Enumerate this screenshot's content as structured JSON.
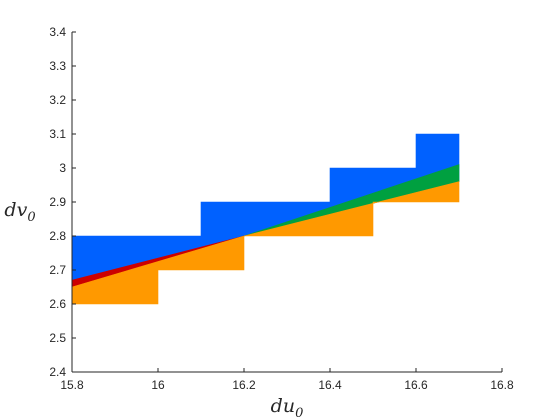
{
  "chart_data": {
    "type": "area",
    "title": "",
    "xlabel": "du",
    "xlabel_sub": "0",
    "ylabel": "dv",
    "ylabel_sub": "0",
    "xlim": [
      15.8,
      16.8
    ],
    "ylim": [
      2.4,
      3.4
    ],
    "xticks": [
      "15.8",
      "16",
      "16.2",
      "16.4",
      "16.6",
      "16.8"
    ],
    "yticks": [
      "2.4",
      "2.5",
      "2.6",
      "2.7",
      "2.8",
      "2.9",
      "3",
      "3.1",
      "3.2",
      "3.3",
      "3.4"
    ],
    "grid": false,
    "legend": "none",
    "series": [
      {
        "color": "#0061ff",
        "points": [
          [
            15.8,
            2.8
          ],
          [
            16.1,
            2.8
          ],
          [
            16.1,
            2.9
          ],
          [
            16.4,
            2.9
          ],
          [
            16.4,
            3.0
          ],
          [
            16.6,
            3.0
          ],
          [
            16.6,
            3.1
          ],
          [
            16.7,
            3.1
          ],
          [
            16.7,
            2.96
          ],
          [
            16.5,
            2.9
          ],
          [
            16.2,
            2.8
          ],
          [
            15.8,
            2.67
          ]
        ]
      },
      {
        "color": "#cc0000",
        "points": [
          [
            15.8,
            2.67
          ],
          [
            16.2,
            2.8
          ],
          [
            15.8,
            2.65
          ]
        ]
      },
      {
        "color": "#00a040",
        "points": [
          [
            16.2,
            2.8
          ],
          [
            16.7,
            3.01
          ],
          [
            16.7,
            2.96
          ]
        ]
      },
      {
        "color": "#ff9900",
        "points": [
          [
            15.8,
            2.65
          ],
          [
            16.2,
            2.8
          ],
          [
            16.7,
            2.96
          ],
          [
            16.7,
            2.9
          ],
          [
            16.5,
            2.9
          ],
          [
            16.5,
            2.8
          ],
          [
            16.2,
            2.8
          ],
          [
            16.2,
            2.7
          ],
          [
            16.0,
            2.7
          ],
          [
            16.0,
            2.6
          ],
          [
            15.8,
            2.6
          ]
        ]
      }
    ]
  }
}
